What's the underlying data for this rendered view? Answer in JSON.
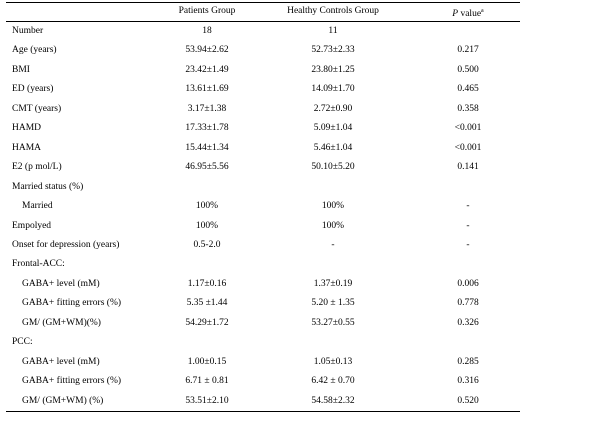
{
  "header": {
    "patients": "Patients Group",
    "controls": "Healthy Controls Group",
    "p_symbol": "P",
    "p_text": "value",
    "p_note": "a"
  },
  "rows": [
    {
      "cells": [
        "Number",
        "18",
        "11"
      ]
    },
    {
      "cells": [
        "Age (years)",
        "53.94±2.62",
        "52.73±2.33",
        "0.217"
      ]
    },
    {
      "cells": [
        "BMI",
        "23.42±1.49",
        "23.80±1.25",
        "0.500"
      ]
    },
    {
      "cells": [
        "ED (years)",
        "13.61±1.69",
        "14.09±1.70",
        "0.465"
      ]
    },
    {
      "cells": [
        "CMT (years)",
        "3.17±1.38",
        "2.72±0.90",
        "0.358"
      ]
    },
    {
      "cells": [
        "HAMD",
        "17.33±1.78",
        "5.09±1.04",
        "<0.001"
      ]
    },
    {
      "cells": [
        "HAMA",
        "15.44±1.34",
        "5.46±1.04",
        "<0.001"
      ]
    },
    {
      "cells": [
        "E2 (p mol/L)",
        "46.95±5.56",
        "50.10±5.20",
        "0.141"
      ]
    },
    {
      "label": "Married status (%)",
      "subrows": [
        [
          "Married",
          "100%",
          "100%",
          "-"
        ]
      ]
    },
    {
      "cells": [
        "Empolyed",
        "100%",
        "100%",
        "-"
      ]
    },
    {
      "cells": [
        "Onset for depression (years)",
        "0.5-2.0",
        "-",
        "-"
      ]
    },
    {
      "label": "Frontal-ACC:",
      "subrows": [
        [
          "GABA+ level (mM)",
          "1.17±0.16",
          "1.37±0.19",
          "0.006"
        ],
        [
          "GABA+ fitting errors (%)",
          "5.35 ±1.44",
          "5.20 ± 1.35",
          "0.778"
        ],
        [
          "GM/ (GM+WM)(%)",
          "54.29±1.72",
          "53.27±0.55",
          "0.326"
        ]
      ]
    },
    {
      "label": "PCC:",
      "subrows": [
        [
          "GABA+ level (mM)",
          "1.00±0.15",
          "1.05±0.13",
          "0.285"
        ],
        [
          "GABA+ fitting errors (%)",
          "6.71 ± 0.81",
          "6.42 ± 0.70",
          "0.316"
        ],
        [
          "GM/ (GM+WM) (%)",
          "53.51±2.10",
          "54.58±2.32",
          "0.520"
        ]
      ]
    }
  ]
}
